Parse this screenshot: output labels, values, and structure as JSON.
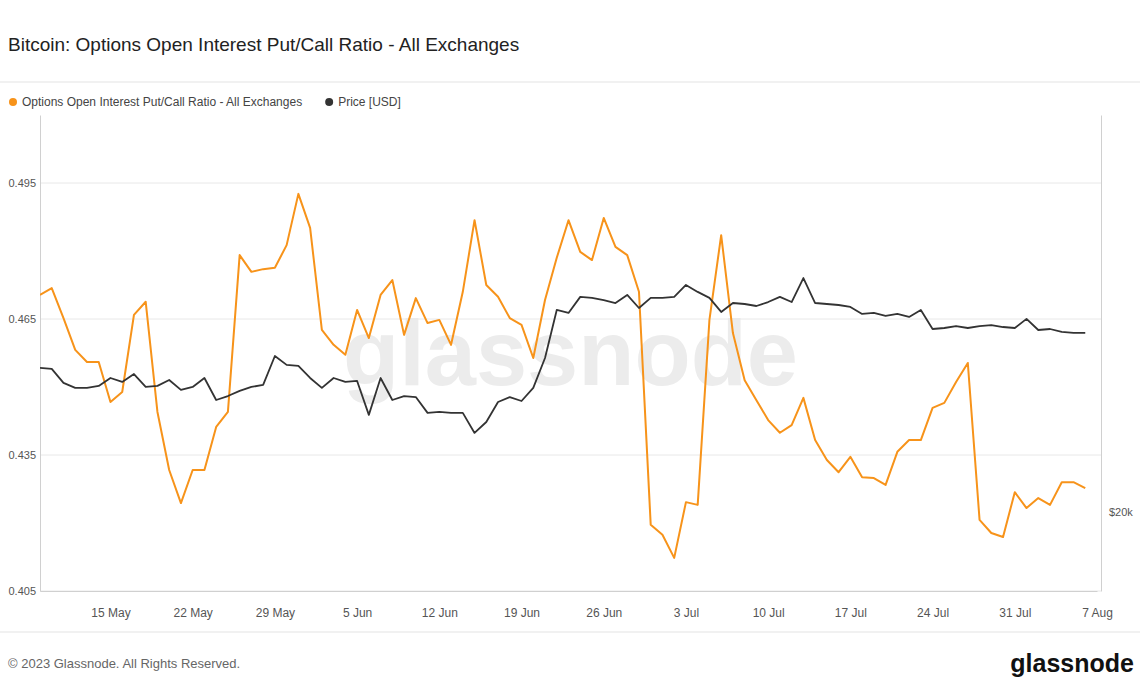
{
  "chart_data": {
    "type": "line",
    "title": "Bitcoin: Options Open Interest Put/Call Ratio - All Exchanges",
    "categories": [
      null,
      null,
      null,
      null,
      null,
      null,
      "15 May",
      null,
      null,
      null,
      null,
      null,
      null,
      "22 May",
      null,
      null,
      null,
      null,
      null,
      null,
      "29 May",
      null,
      null,
      null,
      null,
      null,
      null,
      "5 Jun",
      null,
      null,
      null,
      null,
      null,
      null,
      "12 Jun",
      null,
      null,
      null,
      null,
      null,
      null,
      "19 Jun",
      null,
      null,
      null,
      null,
      null,
      null,
      "26 Jun",
      null,
      null,
      null,
      null,
      null,
      null,
      "3 Jul",
      null,
      null,
      null,
      null,
      null,
      null,
      "10 Jul",
      null,
      null,
      null,
      null,
      null,
      null,
      "17 Jul",
      null,
      null,
      null,
      null,
      null,
      null,
      "24 Jul",
      null,
      null,
      null,
      null,
      null,
      null,
      "31 Jul",
      null,
      null,
      null,
      null,
      null,
      null,
      "7 Aug"
    ],
    "series": [
      {
        "name": "Options Open Interest Put/Call Ratio - All Exchanges",
        "color": "#f7931a",
        "values": [
          0.4703,
          0.4718,
          0.4652,
          0.4582,
          0.4555,
          0.4555,
          0.4467,
          0.4489,
          0.4659,
          0.4688,
          0.4445,
          0.4317,
          0.4244,
          0.4317,
          0.4317,
          0.4412,
          0.4445,
          0.4791,
          0.4754,
          0.476,
          0.4763,
          0.4813,
          0.4926,
          0.4851,
          0.4626,
          0.4593,
          0.4571,
          0.467,
          0.4608,
          0.4703,
          0.4736,
          0.4615,
          0.4696,
          0.4641,
          0.4648,
          0.4593,
          0.471,
          0.4868,
          0.4725,
          0.4699,
          0.4652,
          0.4637,
          0.4564,
          0.4692,
          0.4785,
          0.4868,
          0.4798,
          0.478,
          0.4873,
          0.4809,
          0.4791,
          0.471,
          0.4196,
          0.4174,
          0.4123,
          0.4246,
          0.424,
          0.4648,
          0.4835,
          0.4619,
          0.4515,
          0.4471,
          0.4427,
          0.4399,
          0.4416,
          0.4476,
          0.4383,
          0.4339,
          0.4312,
          0.4346,
          0.4301,
          0.4299,
          0.4284,
          0.4357,
          0.4383,
          0.4383,
          0.4454,
          0.4465,
          0.4511,
          0.4553,
          0.4207,
          0.4178,
          0.4169,
          0.4268,
          0.4233,
          0.4255,
          0.424,
          0.429,
          0.429,
          0.4277,
          null
        ]
      },
      {
        "name": "Price [USD]",
        "color": "#333333",
        "axis": "y2",
        "values": [
          27250,
          27200,
          26490,
          26240,
          26240,
          26340,
          26740,
          26540,
          26940,
          26290,
          26340,
          26640,
          26140,
          26290,
          26740,
          25630,
          25830,
          26090,
          26290,
          26390,
          27850,
          27400,
          27350,
          26740,
          26240,
          26740,
          26540,
          26590,
          24880,
          26740,
          25630,
          25830,
          25780,
          24980,
          25030,
          24980,
          24980,
          23970,
          24520,
          25530,
          25780,
          25580,
          26240,
          27750,
          30170,
          30020,
          30830,
          30780,
          30670,
          30520,
          30930,
          30270,
          30780,
          30780,
          30830,
          31430,
          31080,
          30780,
          30070,
          30520,
          30470,
          30370,
          30570,
          30830,
          30570,
          31780,
          30520,
          30470,
          30420,
          30320,
          29970,
          30020,
          29870,
          29970,
          29820,
          30170,
          29210,
          29260,
          29360,
          29260,
          29360,
          29410,
          29310,
          29260,
          29720,
          29160,
          29210,
          29060,
          29010,
          29010,
          null
        ]
      }
    ],
    "ylim": [
      0.405,
      0.51
    ],
    "yticks": [
      0.405,
      0.435,
      0.465,
      0.495
    ],
    "y2lim": [
      16000,
      40000
    ],
    "y2ticks": [
      {
        "value": 20000,
        "label": "$20k"
      }
    ],
    "grid": true,
    "legend": "top-left",
    "watermark": "glassnode",
    "copyright": "© 2023 Glassnode. All Rights Reserved.",
    "logo": "glassnode"
  }
}
